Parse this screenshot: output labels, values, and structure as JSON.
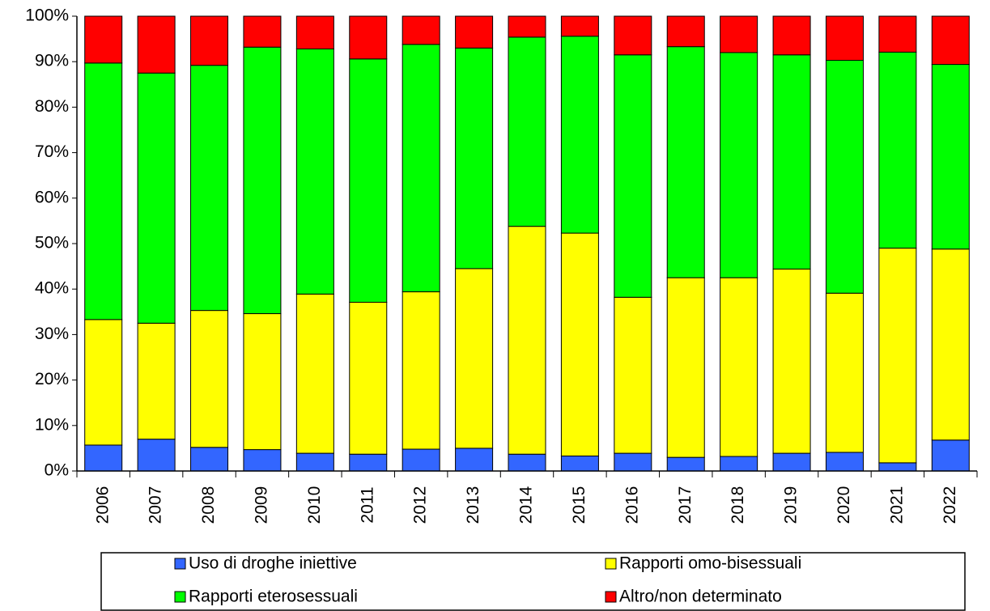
{
  "chart_data": {
    "type": "stacked_bar",
    "categories": [
      "2006",
      "2007",
      "2008",
      "2009",
      "2010",
      "2011",
      "2012",
      "2013",
      "2014",
      "2015",
      "2016",
      "2017",
      "2018",
      "2019",
      "2020",
      "2021",
      "2022"
    ],
    "series": [
      {
        "name": "Uso di droghe iniettive",
        "color": "#3366ff",
        "values": [
          5.7,
          7.0,
          5.2,
          4.7,
          3.9,
          3.7,
          4.8,
          5.0,
          3.7,
          3.3,
          3.9,
          3.0,
          3.2,
          3.9,
          4.1,
          1.8,
          6.8
        ]
      },
      {
        "name": "Rapporti omo-bisessuali",
        "color": "#ffff00",
        "values": [
          27.6,
          25.5,
          30.1,
          29.9,
          35.0,
          33.4,
          34.6,
          39.5,
          50.1,
          49.0,
          34.3,
          39.5,
          39.3,
          40.5,
          35.0,
          47.2,
          42.0
        ]
      },
      {
        "name": "Rapporti eterosessuali",
        "color": "#00ff00",
        "values": [
          56.4,
          55.0,
          53.9,
          58.6,
          53.9,
          53.5,
          54.4,
          48.5,
          41.6,
          43.3,
          53.3,
          50.8,
          49.5,
          47.1,
          51.2,
          43.1,
          40.6
        ]
      },
      {
        "name": "Altro/non determinato",
        "color": "#ff0000",
        "values": [
          10.3,
          12.5,
          10.8,
          6.8,
          7.2,
          9.4,
          6.2,
          7.0,
          4.6,
          4.4,
          8.5,
          6.7,
          8.0,
          8.5,
          9.7,
          7.9,
          10.6
        ]
      }
    ],
    "ylim": [
      0,
      100
    ],
    "yticks": [
      {
        "value": 0,
        "label": "0%"
      },
      {
        "value": 10,
        "label": "10%"
      },
      {
        "value": 20,
        "label": "20%"
      },
      {
        "value": 30,
        "label": "30%"
      },
      {
        "value": 40,
        "label": "40%"
      },
      {
        "value": 50,
        "label": "50%"
      },
      {
        "value": 60,
        "label": "60%"
      },
      {
        "value": 70,
        "label": "70%"
      },
      {
        "value": 80,
        "label": "80%"
      },
      {
        "value": 90,
        "label": "90%"
      },
      {
        "value": 100,
        "label": "100%"
      }
    ],
    "grid": false
  }
}
